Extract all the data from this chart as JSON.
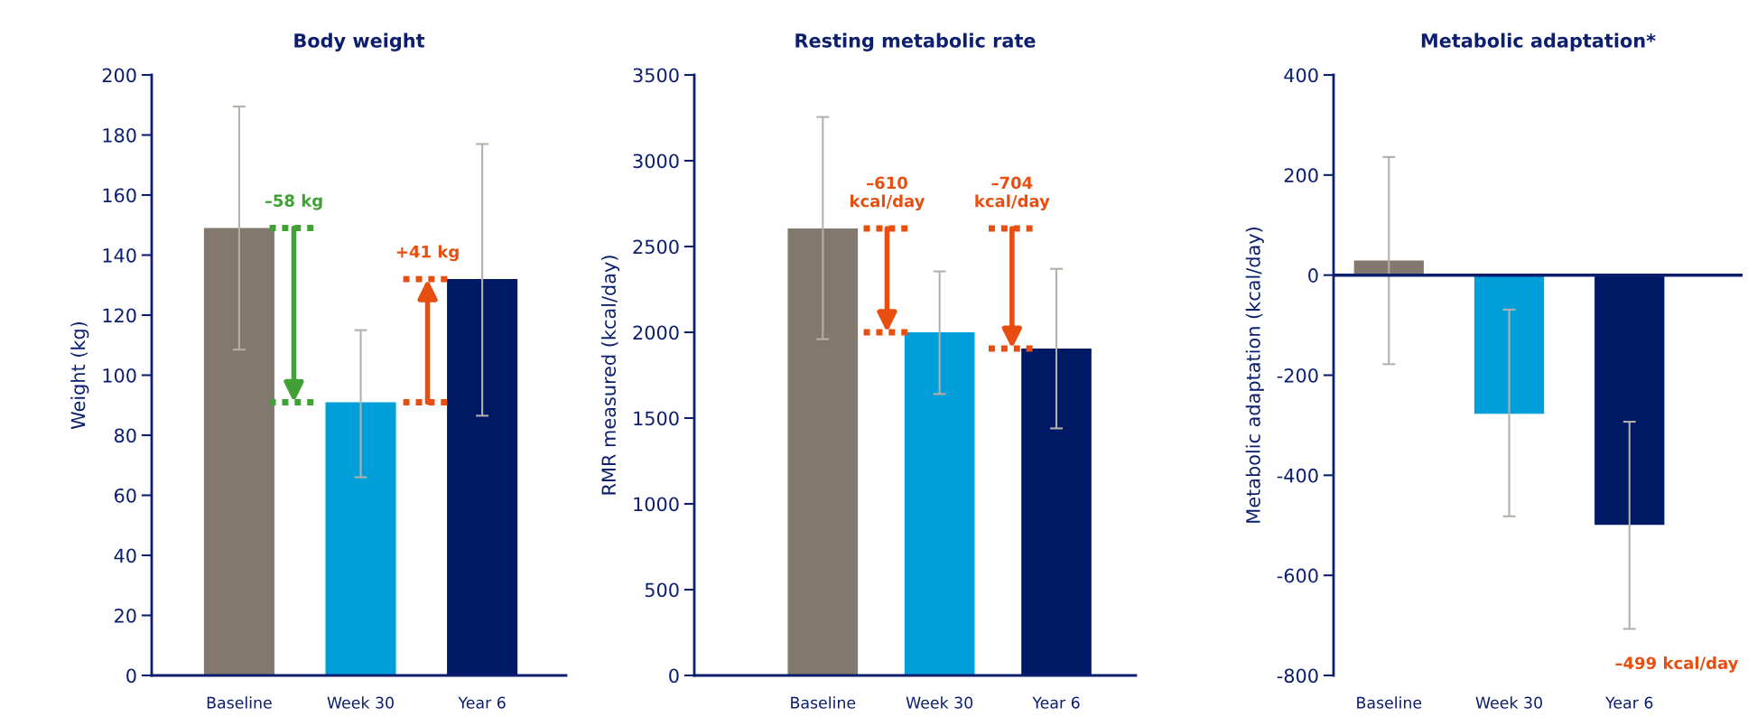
{
  "chart_data": [
    {
      "type": "bar",
      "title": "Body weight",
      "ylabel": "Weight (kg)",
      "categories": [
        "Baseline",
        "Week 30",
        "Year 6"
      ],
      "values": [
        149,
        91,
        132
      ],
      "colors": [
        "#82786e",
        "#009fda",
        "#001965"
      ],
      "errors": [
        [
          108.5,
          189.5
        ],
        [
          66,
          115
        ],
        [
          86.5,
          177
        ]
      ],
      "ylim": [
        0,
        200
      ],
      "yticks": [
        0,
        20,
        40,
        60,
        80,
        100,
        120,
        140,
        160,
        180,
        200
      ],
      "grid": false,
      "legend": false,
      "annotations": [
        "–58 kg",
        "+41 kg"
      ]
    },
    {
      "type": "bar",
      "title": "Resting metabolic rate",
      "ylabel": "RMR measured (kcal/day)",
      "categories": [
        "Baseline",
        "Week 30",
        "Year 6"
      ],
      "values": [
        2605,
        2000,
        1905
      ],
      "colors": [
        "#82786e",
        "#009fda",
        "#001965"
      ],
      "errors": [
        [
          1960,
          3255
        ],
        [
          1640,
          2355
        ],
        [
          1440,
          2370
        ]
      ],
      "ylim": [
        0,
        3500
      ],
      "yticks": [
        0,
        500,
        1000,
        1500,
        2000,
        2500,
        3000,
        3500
      ],
      "grid": false,
      "legend": false,
      "annotations": [
        "–610\nkcal/day",
        "–704\nkcal/day"
      ]
    },
    {
      "type": "bar",
      "title": "Metabolic adaptation*",
      "ylabel": "Metabolic adaptation (kcal/day)",
      "categories": [
        "Baseline",
        "Week 30",
        "Year 6"
      ],
      "values": [
        29,
        -277,
        -499
      ],
      "colors": [
        "#82786e",
        "#009fda",
        "#001965"
      ],
      "errors": [
        [
          -178,
          236
        ],
        [
          -482,
          -69
        ],
        [
          -707,
          -293
        ]
      ],
      "ylim": [
        -800,
        400
      ],
      "yticks": [
        -800,
        -600,
        -400,
        -200,
        0,
        200,
        400
      ],
      "grid": false,
      "legend": false,
      "ref_lines": [
        {
          "axis": "y",
          "value": 0
        }
      ],
      "annotations": [
        "–499 kcal/day"
      ]
    }
  ]
}
